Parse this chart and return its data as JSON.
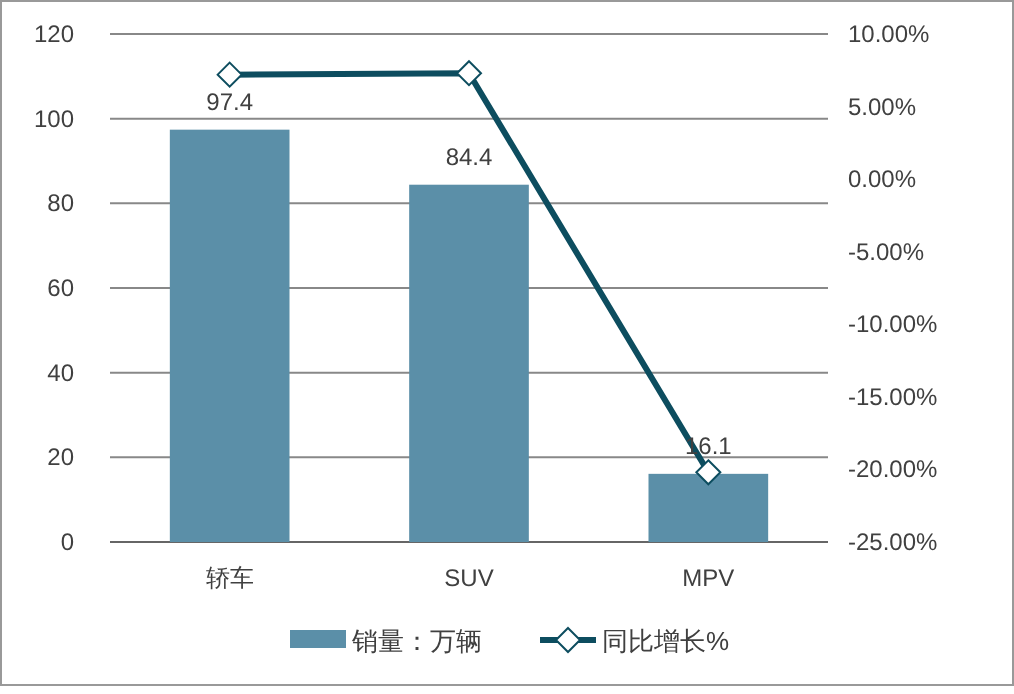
{
  "chart_data": {
    "type": "bar",
    "categories": [
      "轿车",
      "SUV",
      "MPV"
    ],
    "series": [
      {
        "name": "销量：万辆",
        "color": "#5b8fa8",
        "values": [
          97.4,
          84.4,
          16.1
        ],
        "value_labels": [
          "97.4",
          "84.4",
          "16.1"
        ]
      },
      {
        "name": "同比增长%",
        "type": "line",
        "axis": "y2",
        "color": "#0d4d5f",
        "marker": "diamond",
        "values": [
          7.2,
          7.3,
          -20.2
        ]
      }
    ],
    "ylim": [
      0,
      120
    ],
    "yticks": [
      0,
      20,
      40,
      60,
      80,
      100,
      120
    ],
    "y2lim": [
      -25,
      10
    ],
    "y2ticks": [
      {
        "value": -25,
        "label": "-25.00%"
      },
      {
        "value": -20,
        "label": "-20.00%"
      },
      {
        "value": -15,
        "label": "-15.00%"
      },
      {
        "value": -10,
        "label": "-10.00%"
      },
      {
        "value": -5,
        "label": "-5.00%"
      },
      {
        "value": 0,
        "label": "0.00%"
      },
      {
        "value": 5,
        "label": "5.00%"
      },
      {
        "value": 10,
        "label": "10.00%"
      }
    ],
    "grid": "y",
    "legend": "bottom"
  }
}
